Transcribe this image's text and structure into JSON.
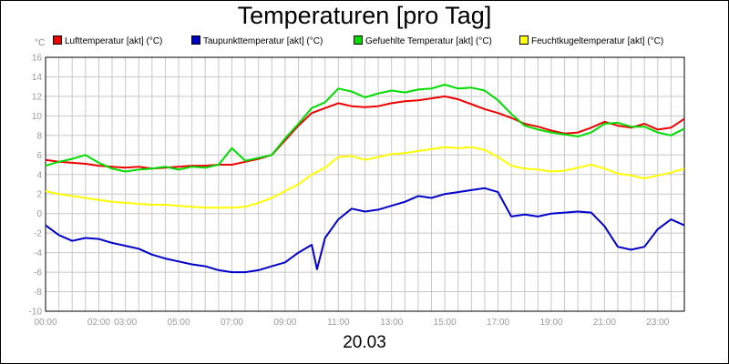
{
  "chart_data": {
    "type": "line",
    "title": "Temperaturen [pro Tag]",
    "xlabel": "20.03",
    "ylabel": "°C",
    "xlim": [
      0,
      24
    ],
    "ylim": [
      -10,
      16
    ],
    "grid": true,
    "legend_position": "top",
    "y_ticks": [
      16,
      14,
      12,
      10,
      8,
      6,
      4,
      2,
      0,
      -2,
      -4,
      -6,
      -8,
      -10
    ],
    "x_ticks": [
      {
        "label": "00:00",
        "x": 0
      },
      {
        "label": "02:00",
        "x": 2
      },
      {
        "label": "03:00",
        "x": 3
      },
      {
        "label": "05:00",
        "x": 5
      },
      {
        "label": "07:00",
        "x": 7
      },
      {
        "label": "09:00",
        "x": 9
      },
      {
        "label": "11:00",
        "x": 11
      },
      {
        "label": "13:00",
        "x": 13
      },
      {
        "label": "15:00",
        "x": 15
      },
      {
        "label": "17:00",
        "x": 17
      },
      {
        "label": "19:00",
        "x": 19
      },
      {
        "label": "21:00",
        "x": 21
      },
      {
        "label": "23:00",
        "x": 23
      }
    ],
    "series": [
      {
        "name": "Lufttemperatur [akt] (°C)",
        "color": "#ee0000",
        "x": [
          0,
          0.5,
          1,
          1.5,
          2,
          2.5,
          3,
          3.5,
          4,
          4.5,
          5,
          5.5,
          6,
          6.5,
          7,
          7.5,
          8,
          8.5,
          9,
          9.5,
          10,
          10.5,
          11,
          11.5,
          12,
          12.5,
          13,
          13.5,
          14,
          14.5,
          15,
          15.5,
          16,
          16.5,
          17,
          17.5,
          18,
          18.5,
          19,
          19.5,
          20,
          20.5,
          21,
          21.5,
          22,
          22.5,
          23,
          23.5,
          24
        ],
        "y": [
          5.5,
          5.3,
          5.2,
          5.1,
          4.9,
          4.8,
          4.7,
          4.8,
          4.6,
          4.7,
          4.8,
          4.9,
          4.9,
          5.0,
          5.0,
          5.3,
          5.6,
          6.0,
          7.5,
          9.0,
          10.3,
          10.8,
          11.3,
          11.0,
          10.9,
          11.0,
          11.3,
          11.5,
          11.6,
          11.8,
          12.0,
          11.7,
          11.2,
          10.7,
          10.3,
          9.8,
          9.2,
          8.9,
          8.5,
          8.2,
          8.3,
          8.8,
          9.4,
          9.0,
          8.8,
          9.2,
          8.6,
          8.8,
          9.7
        ]
      },
      {
        "name": "Taupunkttemperatur [akt] (°C)",
        "color": "#0000cc",
        "x": [
          0,
          0.5,
          1,
          1.5,
          2,
          2.5,
          3,
          3.5,
          4,
          4.5,
          5,
          5.5,
          6,
          6.5,
          7,
          7.5,
          8,
          8.5,
          9,
          9.5,
          10,
          10.2,
          10.5,
          11,
          11.5,
          12,
          12.5,
          13,
          13.5,
          14,
          14.5,
          15,
          15.5,
          16,
          16.5,
          17,
          17.5,
          18,
          18.5,
          19,
          19.5,
          20,
          20.5,
          21,
          21.5,
          22,
          22.5,
          23,
          23.5,
          24
        ],
        "y": [
          -1.2,
          -2.2,
          -2.8,
          -2.5,
          -2.6,
          -3.0,
          -3.3,
          -3.6,
          -4.2,
          -4.6,
          -4.9,
          -5.2,
          -5.4,
          -5.8,
          -6.0,
          -6.0,
          -5.8,
          -5.4,
          -5.0,
          -4.0,
          -3.2,
          -5.7,
          -2.5,
          -0.6,
          0.5,
          0.2,
          0.4,
          0.8,
          1.2,
          1.8,
          1.6,
          2.0,
          2.2,
          2.4,
          2.6,
          2.2,
          -0.3,
          -0.1,
          -0.3,
          0.0,
          0.1,
          0.2,
          0.1,
          -1.3,
          -3.4,
          -3.7,
          -3.4,
          -1.6,
          -0.6,
          -1.2
        ]
      },
      {
        "name": "Gefuehlte Temperatur [akt] (°C)",
        "color": "#00dd00",
        "x": [
          0,
          0.5,
          1,
          1.5,
          2,
          2.5,
          3,
          3.5,
          4,
          4.5,
          5,
          5.5,
          6,
          6.5,
          7,
          7.5,
          8,
          8.5,
          9,
          9.5,
          10,
          10.5,
          11,
          11.5,
          12,
          12.5,
          13,
          13.5,
          14,
          14.5,
          15,
          15.5,
          16,
          16.5,
          17,
          17.5,
          18,
          18.5,
          19,
          19.5,
          20,
          20.5,
          21,
          21.5,
          22,
          22.5,
          23,
          23.5,
          24
        ],
        "y": [
          4.9,
          5.3,
          5.6,
          6.0,
          5.2,
          4.6,
          4.3,
          4.5,
          4.6,
          4.8,
          4.5,
          4.8,
          4.7,
          5.0,
          6.7,
          5.4,
          5.7,
          6.0,
          7.7,
          9.2,
          10.8,
          11.4,
          12.8,
          12.5,
          11.9,
          12.3,
          12.6,
          12.4,
          12.7,
          12.8,
          13.2,
          12.8,
          12.9,
          12.6,
          11.6,
          10.2,
          9.0,
          8.6,
          8.3,
          8.1,
          7.9,
          8.3,
          9.2,
          9.3,
          8.9,
          8.9,
          8.3,
          8.0,
          8.7
        ]
      },
      {
        "name": "Feuchtkugeltemperatur [akt] (°C)",
        "color": "#ffff00",
        "x": [
          0,
          0.5,
          1,
          1.5,
          2,
          2.5,
          3,
          3.5,
          4,
          4.5,
          5,
          5.5,
          6,
          6.5,
          7,
          7.5,
          8,
          8.5,
          9,
          9.5,
          10,
          10.5,
          11,
          11.5,
          12,
          12.5,
          13,
          13.5,
          14,
          14.5,
          15,
          15.5,
          16,
          16.5,
          17,
          17.5,
          18,
          18.5,
          19,
          19.5,
          20,
          20.5,
          21,
          21.5,
          22,
          22.5,
          23,
          23.5,
          24
        ],
        "y": [
          2.3,
          2.0,
          1.8,
          1.6,
          1.4,
          1.2,
          1.1,
          1.0,
          0.9,
          0.9,
          0.8,
          0.7,
          0.6,
          0.6,
          0.6,
          0.7,
          1.1,
          1.6,
          2.3,
          3.0,
          4.0,
          4.7,
          5.8,
          5.9,
          5.5,
          5.8,
          6.1,
          6.2,
          6.4,
          6.6,
          6.8,
          6.7,
          6.8,
          6.5,
          5.8,
          4.9,
          4.6,
          4.5,
          4.3,
          4.4,
          4.7,
          5.0,
          4.6,
          4.1,
          3.9,
          3.6,
          3.9,
          4.2,
          4.6
        ]
      }
    ]
  }
}
